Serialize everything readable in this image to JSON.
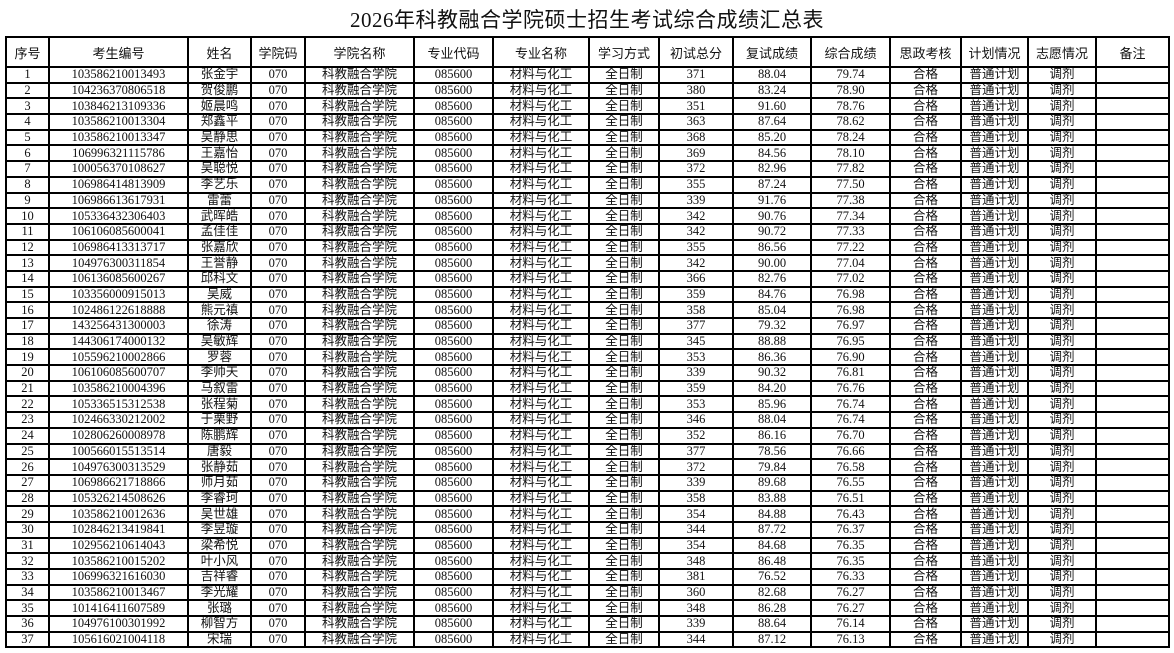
{
  "title": "2026年科教融合学院硕士招生考试综合成绩汇总表",
  "headers": [
    "序号",
    "考生编号",
    "姓名",
    "学院码",
    "学院名称",
    "专业代码",
    "专业名称",
    "学习方式",
    "初试总分",
    "复试成绩",
    "综合成绩",
    "思政考核",
    "计划情况",
    "志愿情况",
    "备注"
  ],
  "common": {
    "college_code": "070",
    "college_name": "科教融合学院",
    "major_code": "085600",
    "major_name": "材料与化工",
    "study_mode": "全日制",
    "ideology": "合格",
    "plan": "普通计划",
    "preference": "调剂",
    "remark": ""
  },
  "rows": [
    [
      "1",
      "103586210013493",
      "张金宇",
      "371",
      "88.04",
      "79.74"
    ],
    [
      "2",
      "104236370806518",
      "贺俊鹏",
      "380",
      "83.24",
      "78.90"
    ],
    [
      "3",
      "103846213109336",
      "姬晨鸣",
      "351",
      "91.60",
      "78.76"
    ],
    [
      "4",
      "103586210013304",
      "郑鑫平",
      "363",
      "87.64",
      "78.62"
    ],
    [
      "5",
      "103586210013347",
      "吴静思",
      "368",
      "85.20",
      "78.24"
    ],
    [
      "6",
      "106996321115786",
      "王嘉怡",
      "369",
      "84.56",
      "78.10"
    ],
    [
      "7",
      "100056370108627",
      "吴聪悦",
      "372",
      "82.96",
      "77.82"
    ],
    [
      "8",
      "106986414813909",
      "李艺乐",
      "355",
      "87.24",
      "77.50"
    ],
    [
      "9",
      "106986613617931",
      "雷蕾",
      "339",
      "91.76",
      "77.38"
    ],
    [
      "10",
      "105336432306403",
      "武晖皓",
      "342",
      "90.76",
      "77.34"
    ],
    [
      "11",
      "106106085600041",
      "孟佳佳",
      "342",
      "90.72",
      "77.33"
    ],
    [
      "12",
      "106986413313717",
      "张嘉欣",
      "355",
      "86.56",
      "77.22"
    ],
    [
      "13",
      "104976300311854",
      "王誉静",
      "342",
      "90.00",
      "77.04"
    ],
    [
      "14",
      "106136085600267",
      "邱科文",
      "366",
      "82.76",
      "77.02"
    ],
    [
      "15",
      "103356000915013",
      "吴威",
      "359",
      "84.76",
      "76.98"
    ],
    [
      "16",
      "102486122618888",
      "熊元禛",
      "358",
      "85.04",
      "76.98"
    ],
    [
      "17",
      "143256431300003",
      "徐涛",
      "377",
      "79.32",
      "76.97"
    ],
    [
      "18",
      "144306174000132",
      "吴敏辉",
      "345",
      "88.88",
      "76.95"
    ],
    [
      "19",
      "105596210002866",
      "罗蓉",
      "353",
      "86.36",
      "76.90"
    ],
    [
      "20",
      "106106085600707",
      "李帅天",
      "339",
      "90.32",
      "76.81"
    ],
    [
      "21",
      "103586210004396",
      "马叙雷",
      "359",
      "84.20",
      "76.76"
    ],
    [
      "22",
      "105336515312538",
      "张程菊",
      "353",
      "85.96",
      "76.74"
    ],
    [
      "23",
      "102466330212002",
      "于栗野",
      "346",
      "88.04",
      "76.74"
    ],
    [
      "24",
      "102806260008978",
      "陈鹏辉",
      "352",
      "86.16",
      "76.70"
    ],
    [
      "25",
      "100566015513514",
      "唐毅",
      "377",
      "78.56",
      "76.66"
    ],
    [
      "26",
      "104976300313529",
      "张静茹",
      "372",
      "79.84",
      "76.58"
    ],
    [
      "27",
      "106986621718866",
      "师月茹",
      "339",
      "89.68",
      "76.55"
    ],
    [
      "28",
      "105326214508626",
      "李睿珂",
      "358",
      "83.88",
      "76.51"
    ],
    [
      "29",
      "103586210012636",
      "吴世雄",
      "354",
      "84.88",
      "76.43"
    ],
    [
      "30",
      "102846213419841",
      "李昱璇",
      "344",
      "87.72",
      "76.37"
    ],
    [
      "31",
      "102956210614043",
      "梁希悦",
      "354",
      "84.68",
      "76.35"
    ],
    [
      "32",
      "103586210015202",
      "叶小风",
      "348",
      "86.48",
      "76.35"
    ],
    [
      "33",
      "106996321616030",
      "吉祥睿",
      "381",
      "76.52",
      "76.33"
    ],
    [
      "34",
      "103586210013467",
      "李光耀",
      "360",
      "82.68",
      "76.27"
    ],
    [
      "35",
      "101416411607589",
      "张璐",
      "348",
      "86.28",
      "76.27"
    ],
    [
      "36",
      "104976100301992",
      "柳智方",
      "339",
      "88.64",
      "76.14"
    ],
    [
      "37",
      "105616021004118",
      "宋瑞",
      "344",
      "87.12",
      "76.13"
    ]
  ]
}
